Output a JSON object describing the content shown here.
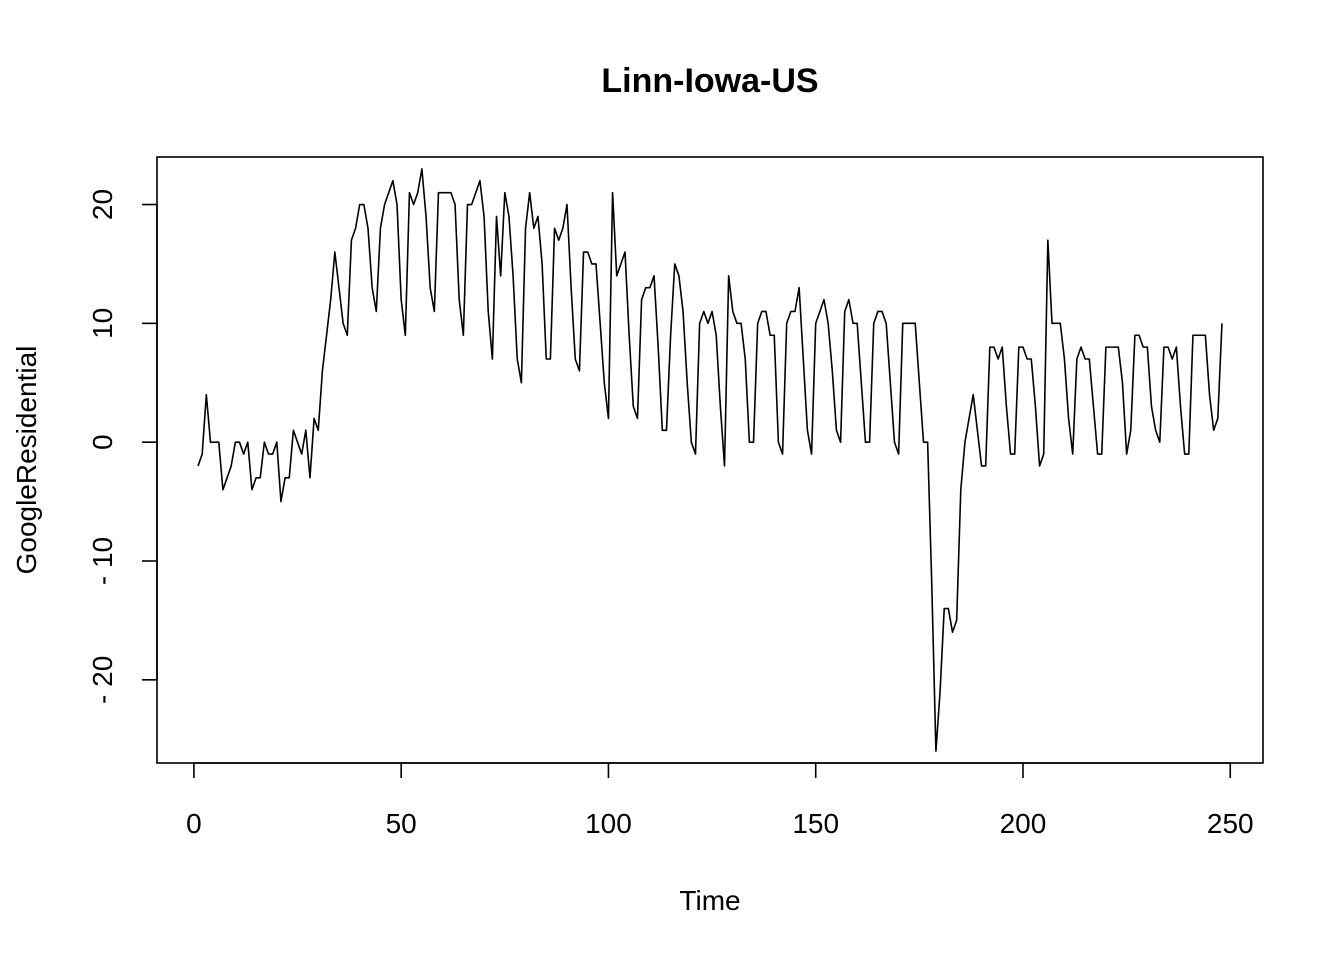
{
  "chart_data": {
    "type": "line",
    "title": "Linn-Iowa-US",
    "xlabel": "Time",
    "ylabel": "GoogleResidential",
    "xlim": [
      -8.9,
      257.9
    ],
    "ylim": [
      -27,
      24
    ],
    "x_ticks": [
      0,
      50,
      100,
      150,
      200,
      250
    ],
    "y_ticks": [
      -20,
      -10,
      0,
      10,
      20
    ],
    "grid": false,
    "series": [
      {
        "color": "#000000",
        "x_start": 1,
        "values": [
          -2,
          -1,
          4,
          0,
          0,
          0,
          -4,
          -3,
          -2,
          0,
          0,
          -1,
          0,
          -4,
          -3,
          -3,
          0,
          -1,
          -1,
          0,
          -5,
          -3,
          -3,
          1,
          0,
          -1,
          1,
          -3,
          2,
          1,
          6,
          9,
          12,
          16,
          13,
          10,
          9,
          17,
          18,
          20,
          20,
          18,
          13,
          11,
          18,
          20,
          21,
          22,
          20,
          12,
          9,
          21,
          20,
          21,
          23,
          19,
          13,
          11,
          21,
          21,
          21,
          21,
          20,
          12,
          9,
          20,
          20,
          21,
          22,
          19,
          11,
          7,
          19,
          14,
          21,
          19,
          14,
          7,
          5,
          18,
          21,
          18,
          19,
          15,
          7,
          7,
          18,
          17,
          18,
          20,
          13,
          7,
          6,
          16,
          16,
          15,
          15,
          10,
          5,
          2,
          21,
          14,
          15,
          16,
          9,
          3,
          2,
          12,
          13,
          13,
          14,
          8,
          1,
          1,
          9,
          15,
          14,
          11,
          5,
          0,
          -1,
          10,
          11,
          10,
          11,
          9,
          3,
          -2,
          14,
          11,
          10,
          10,
          7,
          0,
          0,
          10,
          11,
          11,
          9,
          9,
          0,
          -1,
          10,
          11,
          11,
          13,
          7,
          1,
          -1,
          10,
          11,
          12,
          10,
          6,
          1,
          0,
          11,
          12,
          10,
          10,
          5,
          0,
          0,
          10,
          11,
          11,
          10,
          5,
          0,
          -1,
          10,
          10,
          10,
          10,
          5,
          0,
          0,
          -12,
          -26,
          -21,
          -14,
          -14,
          -16,
          -15,
          -4,
          0,
          2,
          4,
          1,
          -2,
          -2,
          8,
          8,
          7,
          8,
          3,
          -1,
          -1,
          8,
          8,
          7,
          7,
          3,
          -2,
          -1,
          17,
          10,
          10,
          10,
          7,
          2,
          -1,
          7,
          8,
          7,
          7,
          3,
          -1,
          -1,
          8,
          8,
          8,
          8,
          5,
          -1,
          1,
          9,
          9,
          8,
          8,
          3,
          1,
          0,
          8,
          8,
          7,
          8,
          3,
          -1,
          -1,
          9,
          9,
          9,
          9,
          4,
          1,
          2,
          10
        ]
      }
    ]
  }
}
